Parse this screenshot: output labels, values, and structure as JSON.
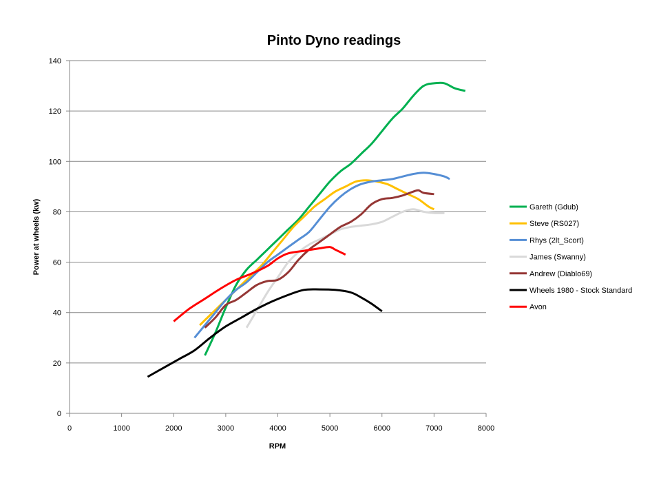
{
  "chart_data": {
    "type": "line",
    "title": "Pinto Dyno readings",
    "xlabel": "RPM",
    "ylabel": "Power at wheels (kw)",
    "xlim": [
      0,
      8000
    ],
    "ylim": [
      0,
      140
    ],
    "x_ticks": [
      "0",
      "1000",
      "2000",
      "3000",
      "4000",
      "5000",
      "6000",
      "7000",
      "8000"
    ],
    "y_ticks": [
      "0",
      "20",
      "40",
      "60",
      "80",
      "100",
      "120",
      "140"
    ],
    "grid": "horizontal",
    "legend_position": "right",
    "series": [
      {
        "name": "Gareth (Gdub)",
        "color": "#00b050",
        "points": [
          [
            2600,
            23
          ],
          [
            2800,
            32
          ],
          [
            3000,
            42
          ],
          [
            3200,
            51
          ],
          [
            3400,
            57
          ],
          [
            3600,
            61
          ],
          [
            3800,
            65
          ],
          [
            4000,
            69
          ],
          [
            4200,
            73
          ],
          [
            4400,
            77
          ],
          [
            4600,
            82
          ],
          [
            4800,
            87
          ],
          [
            5000,
            92
          ],
          [
            5200,
            96
          ],
          [
            5400,
            99
          ],
          [
            5600,
            103
          ],
          [
            5800,
            107
          ],
          [
            6000,
            112
          ],
          [
            6200,
            117
          ],
          [
            6400,
            121
          ],
          [
            6600,
            126
          ],
          [
            6800,
            130
          ],
          [
            7000,
            131
          ],
          [
            7200,
            131
          ],
          [
            7400,
            129
          ],
          [
            7600,
            128
          ]
        ]
      },
      {
        "name": "Steve (RS027)",
        "color": "#ffc000",
        "points": [
          [
            2500,
            35
          ],
          [
            2700,
            39
          ],
          [
            2900,
            43
          ],
          [
            3100,
            47
          ],
          [
            3300,
            51
          ],
          [
            3500,
            55
          ],
          [
            3700,
            59
          ],
          [
            3900,
            64
          ],
          [
            4100,
            69
          ],
          [
            4300,
            74
          ],
          [
            4500,
            78
          ],
          [
            4700,
            82
          ],
          [
            4900,
            85
          ],
          [
            5100,
            88
          ],
          [
            5300,
            90
          ],
          [
            5500,
            92
          ],
          [
            5700,
            92.5
          ],
          [
            5900,
            92
          ],
          [
            6100,
            91
          ],
          [
            6300,
            89
          ],
          [
            6500,
            87
          ],
          [
            6700,
            85
          ],
          [
            6900,
            82
          ],
          [
            7000,
            81
          ]
        ]
      },
      {
        "name": "Rhys (2lt_Scort)",
        "color": "#558ed5",
        "points": [
          [
            2400,
            30
          ],
          [
            2600,
            35
          ],
          [
            2800,
            40
          ],
          [
            3000,
            45
          ],
          [
            3200,
            49
          ],
          [
            3400,
            52
          ],
          [
            3600,
            56
          ],
          [
            3800,
            60
          ],
          [
            4000,
            63
          ],
          [
            4200,
            66
          ],
          [
            4400,
            69
          ],
          [
            4600,
            72
          ],
          [
            4800,
            77
          ],
          [
            5000,
            82
          ],
          [
            5200,
            86
          ],
          [
            5400,
            89
          ],
          [
            5600,
            91
          ],
          [
            5800,
            92
          ],
          [
            6000,
            92.5
          ],
          [
            6200,
            93
          ],
          [
            6400,
            94
          ],
          [
            6600,
            95
          ],
          [
            6800,
            95.5
          ],
          [
            7000,
            95
          ],
          [
            7200,
            94
          ],
          [
            7300,
            93
          ]
        ]
      },
      {
        "name": "James (Swanny)",
        "color": "#d9d9d9",
        "points": [
          [
            3400,
            34
          ],
          [
            3600,
            41
          ],
          [
            3800,
            48
          ],
          [
            4000,
            54
          ],
          [
            4200,
            60
          ],
          [
            4400,
            64
          ],
          [
            4600,
            67
          ],
          [
            4800,
            69
          ],
          [
            5000,
            71
          ],
          [
            5200,
            73
          ],
          [
            5400,
            74
          ],
          [
            5600,
            74.5
          ],
          [
            5800,
            75
          ],
          [
            6000,
            76
          ],
          [
            6200,
            78
          ],
          [
            6400,
            80
          ],
          [
            6600,
            81
          ],
          [
            6800,
            80
          ],
          [
            7000,
            79.5
          ],
          [
            7200,
            79.5
          ]
        ]
      },
      {
        "name": "Andrew (Diablo69)",
        "color": "#953735",
        "points": [
          [
            2600,
            34
          ],
          [
            2800,
            38
          ],
          [
            3000,
            43
          ],
          [
            3200,
            45
          ],
          [
            3400,
            48
          ],
          [
            3600,
            51
          ],
          [
            3800,
            52.5
          ],
          [
            4000,
            53
          ],
          [
            4200,
            56
          ],
          [
            4400,
            61
          ],
          [
            4600,
            65
          ],
          [
            4800,
            68
          ],
          [
            5000,
            71
          ],
          [
            5200,
            74
          ],
          [
            5400,
            76
          ],
          [
            5600,
            79
          ],
          [
            5800,
            83
          ],
          [
            6000,
            85
          ],
          [
            6200,
            85.5
          ],
          [
            6400,
            86.5
          ],
          [
            6600,
            88
          ],
          [
            6700,
            88.5
          ],
          [
            6800,
            87.5
          ],
          [
            7000,
            87
          ]
        ]
      },
      {
        "name": "Wheels 1980 - Stock Standard",
        "color": "#000000",
        "points": [
          [
            1500,
            14.5
          ],
          [
            1800,
            18
          ],
          [
            2100,
            21.5
          ],
          [
            2400,
            25
          ],
          [
            2700,
            30
          ],
          [
            3000,
            34.5
          ],
          [
            3300,
            38
          ],
          [
            3600,
            41.5
          ],
          [
            3900,
            44.5
          ],
          [
            4200,
            47
          ],
          [
            4500,
            49
          ],
          [
            4800,
            49.2
          ],
          [
            5100,
            49
          ],
          [
            5400,
            48
          ],
          [
            5600,
            46
          ],
          [
            5800,
            43.5
          ],
          [
            6000,
            40.5
          ]
        ]
      },
      {
        "name": "Avon",
        "color": "#ff0000",
        "points": [
          [
            2000,
            36.5
          ],
          [
            2300,
            41.5
          ],
          [
            2600,
            45.5
          ],
          [
            2900,
            49.5
          ],
          [
            3200,
            53
          ],
          [
            3500,
            55.5
          ],
          [
            3800,
            58.5
          ],
          [
            4000,
            61.5
          ],
          [
            4200,
            63.5
          ],
          [
            4500,
            64.5
          ],
          [
            4800,
            65.5
          ],
          [
            5000,
            66
          ],
          [
            5100,
            65
          ],
          [
            5300,
            63
          ]
        ]
      }
    ]
  }
}
